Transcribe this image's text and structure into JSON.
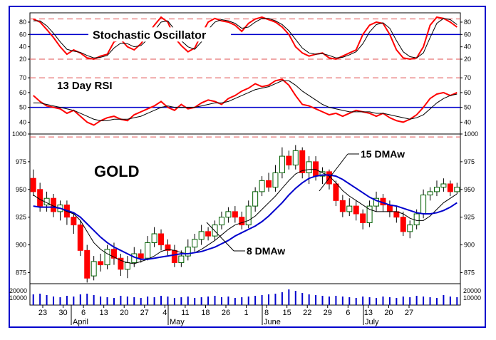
{
  "chart_data": [
    {
      "type": "line",
      "title": "Stochastic Oscillator",
      "ylim": [
        5,
        95
      ],
      "y_ticks": [
        20,
        40,
        60,
        80
      ],
      "reference_lines": [
        {
          "value": 85,
          "style": "dashed",
          "color": "#e05050"
        },
        {
          "value": 60,
          "style": "solid",
          "color": "#0000cc"
        },
        {
          "value": 20,
          "style": "dashed",
          "color": "#e05050"
        }
      ],
      "series": [
        {
          "color": "#ff0000",
          "values": [
            85,
            80,
            68,
            55,
            40,
            28,
            35,
            30,
            22,
            20,
            25,
            28,
            48,
            52,
            40,
            35,
            45,
            60,
            75,
            88,
            80,
            55,
            42,
            32,
            38,
            60,
            80,
            86,
            82,
            80,
            75,
            65,
            78,
            85,
            88,
            84,
            80,
            72,
            60,
            40,
            30,
            25,
            28,
            30,
            22,
            20,
            25,
            30,
            35,
            60,
            75,
            80,
            78,
            60,
            35,
            22,
            20,
            22,
            40,
            75,
            88,
            86,
            80,
            72
          ]
        },
        {
          "color": "#000000",
          "values": [
            82,
            82,
            74,
            62,
            48,
            36,
            33,
            31,
            26,
            22,
            23,
            26,
            38,
            46,
            45,
            40,
            42,
            52,
            66,
            80,
            82,
            68,
            50,
            40,
            36,
            48,
            68,
            80,
            84,
            82,
            78,
            70,
            72,
            80,
            86,
            86,
            82,
            76,
            66,
            52,
            38,
            30,
            28,
            29,
            26,
            22,
            23,
            27,
            32,
            45,
            64,
            76,
            79,
            70,
            50,
            32,
            24,
            22,
            30,
            55,
            78,
            86,
            84,
            76
          ]
        }
      ]
    },
    {
      "type": "line",
      "title": "13 Day RSI",
      "ylim": [
        32,
        72
      ],
      "y_ticks": [
        40,
        50,
        60,
        70
      ],
      "reference_lines": [
        {
          "value": 70,
          "style": "dashed",
          "color": "#e05050"
        },
        {
          "value": 50,
          "style": "solid",
          "color": "#0000cc"
        },
        {
          "value": 30,
          "style": "dashed",
          "color": "#e05050"
        }
      ],
      "series": [
        {
          "color": "#ff0000",
          "values": [
            58,
            54,
            51,
            50,
            49,
            46,
            48,
            44,
            40,
            38,
            41,
            43,
            44,
            42,
            41,
            45,
            47,
            49,
            51,
            54,
            50,
            48,
            52,
            49,
            50,
            53,
            55,
            54,
            52,
            56,
            58,
            61,
            63,
            66,
            64,
            65,
            68,
            69,
            65,
            58,
            52,
            51,
            49,
            47,
            45,
            46,
            44,
            46,
            48,
            47,
            46,
            44,
            46,
            43,
            41,
            40,
            42,
            45,
            50,
            56,
            59,
            60,
            58,
            60
          ]
        },
        {
          "color": "#000000",
          "values": [
            53,
            53,
            52,
            51,
            50,
            49,
            48,
            46,
            44,
            42,
            41,
            41,
            42,
            42,
            42,
            43,
            44,
            46,
            48,
            50,
            51,
            50,
            50,
            50,
            50,
            51,
            52,
            53,
            53,
            54,
            56,
            58,
            60,
            62,
            63,
            64,
            66,
            68,
            68,
            65,
            61,
            58,
            55,
            52,
            50,
            49,
            48,
            47,
            47,
            47,
            47,
            46,
            46,
            45,
            44,
            43,
            42,
            43,
            45,
            49,
            53,
            56,
            58,
            59
          ]
        }
      ]
    },
    {
      "type": "candlestick",
      "title": "GOLD",
      "ylim": [
        865,
        1000
      ],
      "y_ticks": [
        875,
        900,
        925,
        950,
        975,
        1000
      ],
      "bullish_color": "#ffffff",
      "bearish_color": "#ff0000",
      "candles": [
        {
          "o": 960,
          "c": 948,
          "h": 968,
          "l": 944
        },
        {
          "o": 950,
          "c": 935,
          "h": 956,
          "l": 930
        },
        {
          "o": 936,
          "c": 942,
          "h": 948,
          "l": 930
        },
        {
          "o": 942,
          "c": 930,
          "h": 946,
          "l": 925
        },
        {
          "o": 930,
          "c": 936,
          "h": 940,
          "l": 922
        },
        {
          "o": 936,
          "c": 925,
          "h": 940,
          "l": 918
        },
        {
          "o": 925,
          "c": 918,
          "h": 928,
          "l": 910
        },
        {
          "o": 918,
          "c": 895,
          "h": 922,
          "l": 890
        },
        {
          "o": 895,
          "c": 870,
          "h": 900,
          "l": 866
        },
        {
          "o": 872,
          "c": 885,
          "h": 890,
          "l": 868
        },
        {
          "o": 885,
          "c": 882,
          "h": 892,
          "l": 876
        },
        {
          "o": 882,
          "c": 896,
          "h": 900,
          "l": 878
        },
        {
          "o": 896,
          "c": 888,
          "h": 902,
          "l": 882
        },
        {
          "o": 888,
          "c": 878,
          "h": 892,
          "l": 872
        },
        {
          "o": 878,
          "c": 884,
          "h": 890,
          "l": 870
        },
        {
          "o": 884,
          "c": 892,
          "h": 898,
          "l": 880
        },
        {
          "o": 892,
          "c": 888,
          "h": 896,
          "l": 884
        },
        {
          "o": 888,
          "c": 902,
          "h": 908,
          "l": 886
        },
        {
          "o": 902,
          "c": 910,
          "h": 916,
          "l": 898
        },
        {
          "o": 910,
          "c": 900,
          "h": 914,
          "l": 895
        },
        {
          "o": 900,
          "c": 895,
          "h": 905,
          "l": 890
        },
        {
          "o": 895,
          "c": 884,
          "h": 900,
          "l": 880
        },
        {
          "o": 884,
          "c": 890,
          "h": 895,
          "l": 880
        },
        {
          "o": 890,
          "c": 898,
          "h": 905,
          "l": 886
        },
        {
          "o": 898,
          "c": 905,
          "h": 910,
          "l": 894
        },
        {
          "o": 905,
          "c": 912,
          "h": 918,
          "l": 900
        },
        {
          "o": 912,
          "c": 908,
          "h": 916,
          "l": 904
        },
        {
          "o": 908,
          "c": 918,
          "h": 922,
          "l": 904
        },
        {
          "o": 918,
          "c": 925,
          "h": 930,
          "l": 914
        },
        {
          "o": 925,
          "c": 930,
          "h": 934,
          "l": 920
        },
        {
          "o": 930,
          "c": 925,
          "h": 935,
          "l": 920
        },
        {
          "o": 925,
          "c": 918,
          "h": 930,
          "l": 914
        },
        {
          "o": 918,
          "c": 935,
          "h": 940,
          "l": 915
        },
        {
          "o": 935,
          "c": 948,
          "h": 952,
          "l": 930
        },
        {
          "o": 948,
          "c": 958,
          "h": 962,
          "l": 944
        },
        {
          "o": 958,
          "c": 952,
          "h": 965,
          "l": 948
        },
        {
          "o": 952,
          "c": 965,
          "h": 972,
          "l": 948
        },
        {
          "o": 965,
          "c": 980,
          "h": 988,
          "l": 960
        },
        {
          "o": 980,
          "c": 972,
          "h": 985,
          "l": 968
        },
        {
          "o": 972,
          "c": 985,
          "h": 990,
          "l": 968
        },
        {
          "o": 985,
          "c": 965,
          "h": 988,
          "l": 960
        },
        {
          "o": 965,
          "c": 975,
          "h": 980,
          "l": 955
        },
        {
          "o": 975,
          "c": 962,
          "h": 980,
          "l": 958
        },
        {
          "o": 962,
          "c": 966,
          "h": 970,
          "l": 955
        },
        {
          "o": 966,
          "c": 955,
          "h": 968,
          "l": 950
        },
        {
          "o": 955,
          "c": 940,
          "h": 958,
          "l": 935
        },
        {
          "o": 940,
          "c": 930,
          "h": 945,
          "l": 925
        },
        {
          "o": 930,
          "c": 935,
          "h": 942,
          "l": 926
        },
        {
          "o": 935,
          "c": 928,
          "h": 940,
          "l": 922
        },
        {
          "o": 928,
          "c": 920,
          "h": 932,
          "l": 914
        },
        {
          "o": 920,
          "c": 935,
          "h": 940,
          "l": 916
        },
        {
          "o": 935,
          "c": 942,
          "h": 948,
          "l": 930
        },
        {
          "o": 942,
          "c": 936,
          "h": 946,
          "l": 930
        },
        {
          "o": 936,
          "c": 930,
          "h": 940,
          "l": 925
        },
        {
          "o": 930,
          "c": 925,
          "h": 935,
          "l": 920
        },
        {
          "o": 925,
          "c": 912,
          "h": 930,
          "l": 908
        },
        {
          "o": 912,
          "c": 918,
          "h": 922,
          "l": 906
        },
        {
          "o": 918,
          "c": 928,
          "h": 932,
          "l": 914
        },
        {
          "o": 928,
          "c": 945,
          "h": 950,
          "l": 924
        },
        {
          "o": 945,
          "c": 948,
          "h": 952,
          "l": 940
        },
        {
          "o": 948,
          "c": 952,
          "h": 958,
          "l": 944
        },
        {
          "o": 952,
          "c": 955,
          "h": 960,
          "l": 948
        },
        {
          "o": 955,
          "c": 948,
          "h": 958,
          "l": 944
        },
        {
          "o": 948,
          "c": 952,
          "h": 956,
          "l": 946
        }
      ],
      "moving_averages": [
        {
          "name": "8 DMAw",
          "color": "#000000",
          "values": [
            945,
            941,
            938,
            935,
            933,
            930,
            928,
            922,
            912,
            902,
            896,
            892,
            889,
            886,
            884,
            883,
            885,
            887,
            890,
            894,
            896,
            895,
            893,
            892,
            893,
            896,
            900,
            904,
            909,
            914,
            918,
            920,
            922,
            926,
            932,
            938,
            944,
            951,
            958,
            964,
            967,
            968,
            968,
            965,
            962,
            956,
            949,
            944,
            940,
            936,
            932,
            930,
            930,
            930,
            930,
            928,
            924,
            922,
            922,
            926,
            932,
            938,
            942,
            946
          ]
        },
        {
          "name": "15 DMAw",
          "color": "#0000cc",
          "values": [
            935,
            934,
            934,
            934,
            933,
            931,
            929,
            925,
            919,
            913,
            907,
            902,
            898,
            895,
            892,
            889,
            887,
            887,
            888,
            889,
            890,
            891,
            892,
            892,
            893,
            894,
            896,
            898,
            901,
            904,
            908,
            911,
            914,
            917,
            921,
            926,
            932,
            938,
            945,
            951,
            956,
            960,
            962,
            963,
            963,
            962,
            959,
            955,
            951,
            947,
            943,
            940,
            938,
            936,
            935,
            933,
            931,
            929,
            928,
            928,
            929,
            931,
            934,
            938
          ]
        }
      ]
    },
    {
      "type": "bar",
      "title": "",
      "y_ticks": [
        10000,
        20000
      ],
      "ylim": [
        0,
        30000
      ],
      "values": [
        15000,
        16000,
        14000,
        12000,
        11000,
        13000,
        12000,
        15000,
        16000,
        14000,
        12000,
        11000,
        10000,
        13000,
        12000,
        11000,
        10000,
        12000,
        11000,
        13000,
        12000,
        10000,
        11000,
        12000,
        10000,
        11000,
        12000,
        13000,
        11000,
        12000,
        10000,
        11000,
        12000,
        13000,
        14000,
        15000,
        16000,
        18000,
        22000,
        20000,
        17000,
        15000,
        14000,
        13000,
        12000,
        13000,
        12000,
        11000,
        10000,
        12000,
        11000,
        10000,
        12000,
        11000,
        10000,
        12000,
        11000,
        13000,
        12000,
        11000,
        10000,
        14000,
        12000,
        11000
      ]
    }
  ],
  "annotations": {
    "gold_label": "GOLD",
    "ma15_label": "15 DMAw",
    "ma8_label": "8 DMAw",
    "stoch_label": "Stochastic Oscillator",
    "rsi_label": "13 Day RSI"
  },
  "x_axis": {
    "dates": [
      "23",
      "30",
      "6",
      "13",
      "20",
      "27",
      "4",
      "11",
      "18",
      "26",
      "1",
      "8",
      "15",
      "22",
      "29",
      "6",
      "13",
      "20",
      "27"
    ],
    "months": [
      "April",
      "May",
      "June",
      "July"
    ]
  },
  "colors": {
    "frame": "#0000cc",
    "red": "#ff0000",
    "blue": "#0000cc",
    "dashed": "#e05050"
  }
}
